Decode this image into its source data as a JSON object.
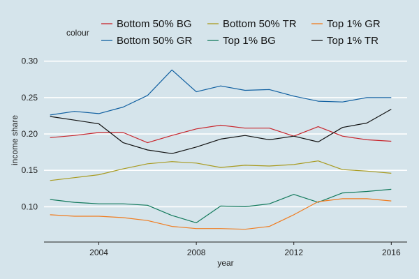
{
  "chart_data": {
    "type": "line",
    "xlabel": "year",
    "ylabel": "income share",
    "legend_title": "colour",
    "legend_position": "top",
    "grid": "horizontal major lines",
    "xlim": [
      2001.75,
      2016.65
    ],
    "ylim": [
      0.0515,
      0.317
    ],
    "x_ticks": [
      2004,
      2008,
      2012,
      2016
    ],
    "x_tick_labels": [
      "2004",
      "2008",
      "2012",
      "2016"
    ],
    "y_ticks": [
      0.1,
      0.15,
      0.2,
      0.25,
      0.3
    ],
    "y_tick_labels": [
      "0.10",
      "0.15",
      "0.20",
      "0.25",
      "0.30"
    ],
    "x": [
      2002,
      2003,
      2004,
      2005,
      2006,
      2007,
      2008,
      2009,
      2010,
      2011,
      2012,
      2013,
      2014,
      2015,
      2016
    ],
    "series": [
      {
        "name": "Bottom 50% BG",
        "color": "#c8242b",
        "values": [
          0.195,
          0.198,
          0.202,
          0.202,
          0.188,
          0.198,
          0.207,
          0.212,
          0.208,
          0.208,
          0.197,
          0.21,
          0.197,
          0.192,
          0.19
        ]
      },
      {
        "name": "Bottom 50% GR",
        "color": "#0f5fa0",
        "values": [
          0.226,
          0.231,
          0.228,
          0.237,
          0.253,
          0.288,
          0.258,
          0.266,
          0.26,
          0.261,
          0.252,
          0.245,
          0.244,
          0.25,
          0.25
        ]
      },
      {
        "name": "Bottom 50% TR",
        "color": "#a89a1f",
        "values": [
          0.136,
          0.14,
          0.144,
          0.152,
          0.159,
          0.162,
          0.16,
          0.154,
          0.157,
          0.156,
          0.158,
          0.163,
          0.151,
          0.149,
          0.146
        ]
      },
      {
        "name": "Top 1% BG",
        "color": "#137a5c",
        "values": [
          0.11,
          0.106,
          0.104,
          0.104,
          0.102,
          0.088,
          0.078,
          0.101,
          0.1,
          0.104,
          0.117,
          0.106,
          0.119,
          0.121,
          0.124
        ]
      },
      {
        "name": "Top 1% GR",
        "color": "#f07c1f",
        "values": [
          0.089,
          0.087,
          0.087,
          0.085,
          0.081,
          0.073,
          0.07,
          0.07,
          0.069,
          0.073,
          0.089,
          0.107,
          0.111,
          0.111,
          0.108
        ]
      },
      {
        "name": "Top 1% TR",
        "color": "#111111",
        "values": [
          0.224,
          0.219,
          0.214,
          0.188,
          0.178,
          0.173,
          0.182,
          0.193,
          0.198,
          0.192,
          0.197,
          0.189,
          0.209,
          0.215,
          0.234
        ]
      }
    ],
    "legend_order": [
      [
        0,
        2,
        4
      ],
      [
        1,
        3,
        5
      ]
    ]
  }
}
